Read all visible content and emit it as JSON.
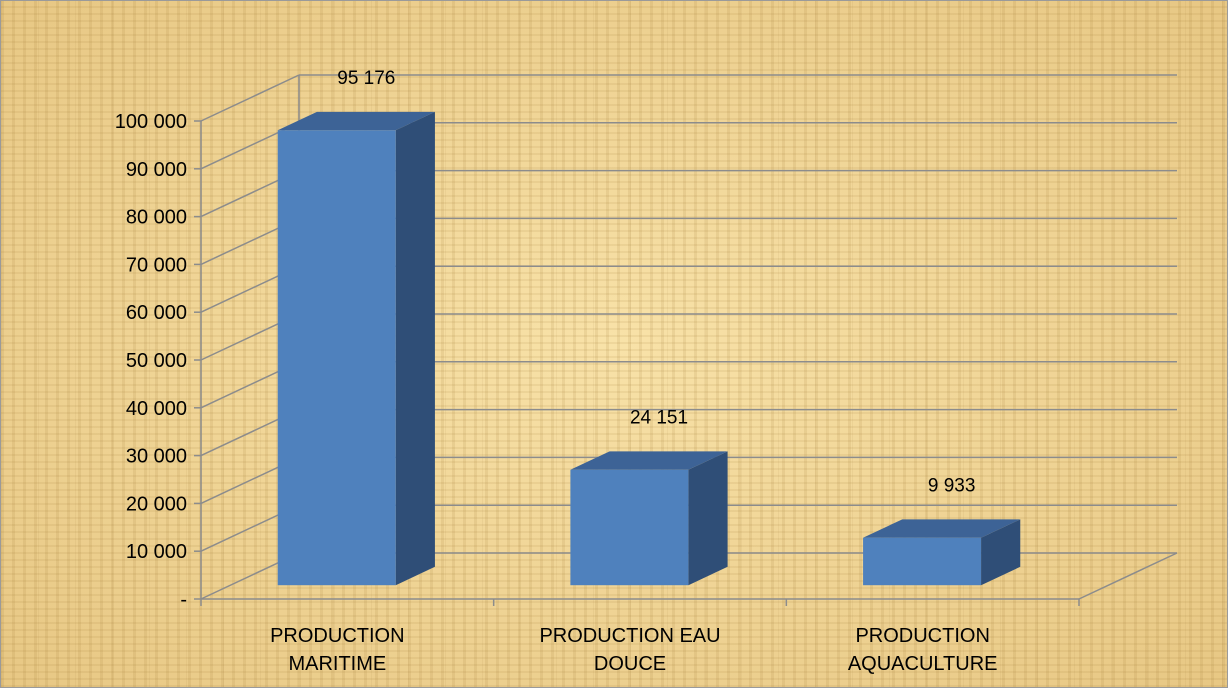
{
  "chart_data": {
    "type": "bar",
    "title": "",
    "xlabel": "",
    "ylabel": "",
    "categories": [
      [
        "PRODUCTION",
        "MARITIME"
      ],
      [
        "PRODUCTION EAU",
        "DOUCE"
      ],
      [
        "PRODUCTION",
        "AQUACULTURE"
      ]
    ],
    "values": [
      95176,
      24151,
      9933
    ],
    "data_labels": [
      "95 176",
      "24 151",
      "9 933"
    ],
    "ylim": [
      0,
      100000
    ],
    "yticks": [
      0,
      10000,
      20000,
      30000,
      40000,
      50000,
      60000,
      70000,
      80000,
      90000,
      100000
    ],
    "ytick_labels": [
      "-",
      "10 000",
      "20 000",
      "30 000",
      "40 000",
      "50 000",
      "60 000",
      "70 000",
      "80 000",
      "90 000",
      "100 000"
    ],
    "grid": true,
    "three_d": true,
    "legend": "none",
    "colors": {
      "bar_front": "#4f81bd",
      "bar_side": "#2f4e77",
      "bar_top": "#3d6396",
      "gridline": "#8c8c8c"
    }
  }
}
